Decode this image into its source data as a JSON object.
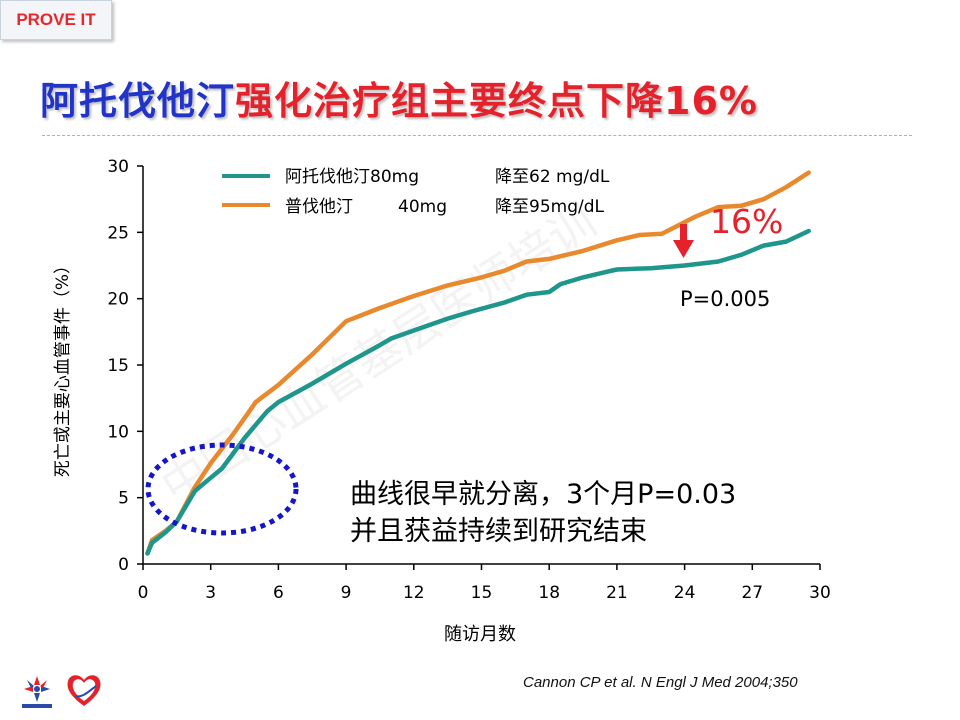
{
  "badge": "PROVE IT",
  "title": {
    "part1": "阿托伐他汀",
    "part2": "强化治疗组主要终点下降",
    "part3": "16%"
  },
  "chart_data": {
    "type": "line",
    "xlabel": "随访月数",
    "ylabel": "死亡或主要心血管事件（%）",
    "x_ticks": [
      0,
      3,
      6,
      9,
      12,
      15,
      18,
      21,
      24,
      27,
      30
    ],
    "y_ticks": [
      0,
      5,
      10,
      15,
      20,
      25,
      30
    ],
    "xlim": [
      0,
      30
    ],
    "ylim": [
      0,
      30
    ],
    "grid": false,
    "legend_position": "top-left",
    "series": [
      {
        "name": "阿托伐他汀80mg",
        "note": "降至62 mg/dL",
        "color": "#1f968b",
        "x": [
          0.2,
          0.4,
          1.0,
          1.5,
          2.3,
          3.0,
          3.5,
          4.5,
          5.5,
          6.0,
          7.5,
          9.0,
          10.5,
          11.0,
          12.5,
          13.5,
          14.5,
          16.0,
          17.0,
          18.0,
          18.5,
          19.5,
          20.5,
          21.0,
          22.5,
          24.0,
          25.5,
          26.5,
          27.5,
          28.5,
          29.5
        ],
        "y": [
          0.8,
          1.6,
          2.4,
          3.2,
          5.5,
          6.5,
          7.2,
          9.5,
          11.5,
          12.2,
          13.6,
          15.1,
          16.5,
          17.0,
          17.9,
          18.5,
          19.0,
          19.7,
          20.3,
          20.5,
          21.1,
          21.6,
          22.0,
          22.2,
          22.3,
          22.5,
          22.8,
          23.3,
          24.0,
          24.3,
          25.1
        ]
      },
      {
        "name": "普伐他汀",
        "dose": "40mg",
        "note": "降至95mg/dL",
        "color": "#e9892d",
        "x": [
          0.2,
          0.4,
          1.0,
          1.5,
          2.3,
          3.0,
          4.0,
          5.0,
          6.0,
          7.5,
          9.0,
          10.5,
          12.0,
          13.5,
          15.0,
          16.0,
          17.0,
          18.0,
          19.5,
          21.0,
          22.0,
          23.0,
          24.5,
          25.5,
          26.5,
          27.5,
          28.5,
          29.5
        ],
        "y": [
          0.8,
          1.8,
          2.5,
          3.2,
          5.8,
          7.6,
          9.8,
          12.2,
          13.5,
          15.8,
          18.3,
          19.3,
          20.2,
          21.0,
          21.6,
          22.1,
          22.8,
          23.0,
          23.6,
          24.4,
          24.8,
          24.9,
          26.2,
          26.9,
          27.0,
          27.5,
          28.4,
          29.5
        ]
      }
    ],
    "annotations": {
      "reduction": "16%",
      "p_value": "P=0.005",
      "note_line1": "曲线很早就分离，3个月P=0.03",
      "note_line2": "并且获益持续到研究结束"
    }
  },
  "citation": "Cannon CP et al. N Engl J Med 2004;350",
  "watermark": "中国心血管基层医师培训"
}
